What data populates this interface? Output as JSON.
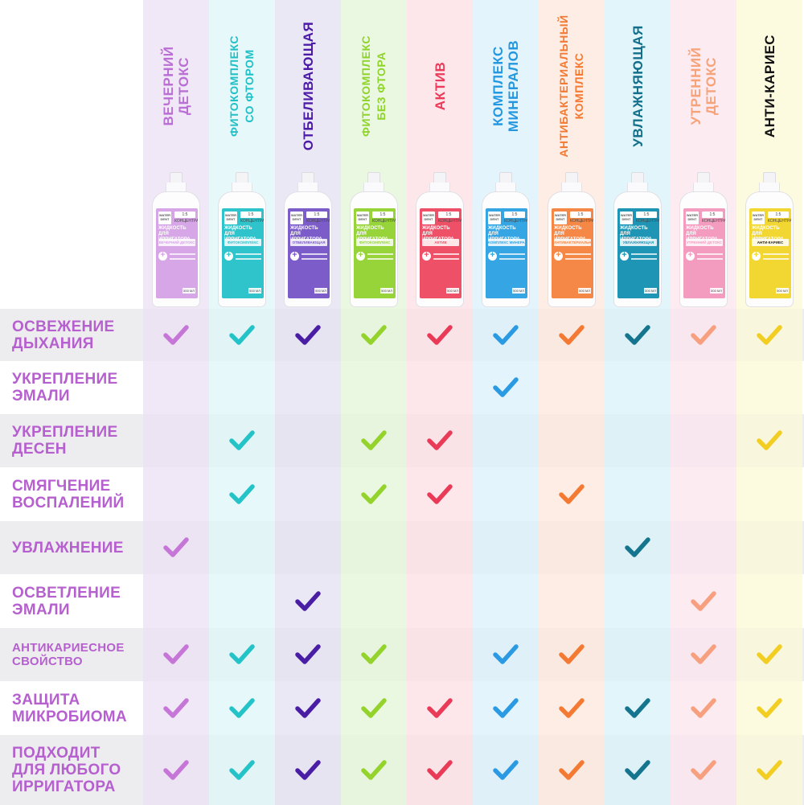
{
  "columns": [
    {
      "title": "ВЕЧЕРНИЙ\nДЕТОКС",
      "bottle_label": "ВЕЧЕРНИЙ ДЕТОКС",
      "color": "#b96fd4",
      "tint": "#ece1f3",
      "label_color": "#d7a6e6"
    },
    {
      "title": "ФИТОКОМПЛЕКС\nСО ФТОРОМ",
      "bottle_label": "ФИТОКОМПЛЕКС",
      "color": "#1fc0c6",
      "tint": "#dff6f7",
      "label_color": "#2fc4cc"
    },
    {
      "title": "ОТБЕЛИВАЮЩАЯ",
      "bottle_label": "ОТБЕЛИВАЮЩАЯ",
      "color": "#4b1aa6",
      "tint": "#e5e1f2",
      "label_color": "#7b5cc8"
    },
    {
      "title": "ФИТОКОМПЛЕКС\nБЕЗ ФТОРА",
      "bottle_label": "ФИТОКОМПЛЕКС",
      "color": "#8fd42a",
      "tint": "#e6f6d8",
      "label_color": "#96d43a"
    },
    {
      "title": "АКТИВ",
      "bottle_label": "АКТИВ",
      "color": "#ea3b5a",
      "tint": "#fde0e4",
      "label_color": "#ee5068"
    },
    {
      "title": "КОМПЛЕКС\nМИНЕРАЛОВ",
      "bottle_label": "КОМПЛЕКС МИНЕРАЛОВ",
      "color": "#2397df",
      "tint": "#dcf1fb",
      "label_color": "#35a5e3"
    },
    {
      "title": "АНТИБАКТЕРИАЛЬНЫЙ\nКОМПЛЕКС",
      "bottle_label": "АНТИБАКТЕРИАЛЬНЫЙ КОМПЛЕКС",
      "color": "#f47932",
      "tint": "#fde8dc",
      "label_color": "#f58846"
    },
    {
      "title": "УВЛАЖНЯЮЩАЯ",
      "bottle_label": "УВЛАЖНЯЮЩАЯ",
      "color": "#136f8a",
      "tint": "#d9f2f8",
      "label_color": "#1f95b5"
    },
    {
      "title": "УТРЕННИЙ\nДЕТОКС",
      "bottle_label": "УТРЕННИЙ ДЕТОКС",
      "color": "#f6a37a",
      "tint": "#fde6ee",
      "label_color": "#f49cbf"
    },
    {
      "title": "АНТИ-КАРИЕС",
      "bottle_label": "АНТИ-КАРИЕС",
      "color": "#111111",
      "tint": "#fbf8d6",
      "label_color": "#f2d632"
    }
  ],
  "bottle_common": {
    "brand": "WATER DENT",
    "concentrate": "1:5 КОНЦЕНТРАТ",
    "product": "ЖИДКОСТЬ ДЛЯ ИРРИГАТОРА",
    "volume": "500 МЛ"
  },
  "check_colors": [
    "#c576d6",
    "#23c3c7",
    "#4a1ea4",
    "#94d32c",
    "#e93b58",
    "#2a9be3",
    "#f47a33",
    "#15758f",
    "#f7a07f",
    "#f2cd22"
  ],
  "rows": [
    {
      "label": "ОСВЕЖЕНИЕ\nДЫХАНИЯ",
      "checks": [
        1,
        1,
        1,
        1,
        1,
        1,
        1,
        1,
        1,
        1
      ]
    },
    {
      "label": "УКРЕПЛЕНИЕ\nЭМАЛИ",
      "checks": [
        0,
        0,
        0,
        0,
        0,
        1,
        0,
        0,
        0,
        0
      ]
    },
    {
      "label": "УКРЕПЛЕНИЕ\nДЕСЕН",
      "checks": [
        0,
        1,
        0,
        1,
        1,
        0,
        0,
        0,
        0,
        1
      ]
    },
    {
      "label": "СМЯГЧЕНИЕ\nВОСПАЛЕНИЙ",
      "checks": [
        0,
        1,
        0,
        1,
        1,
        0,
        1,
        0,
        0,
        0
      ]
    },
    {
      "label": "УВЛАЖНЕНИЕ",
      "checks": [
        1,
        0,
        0,
        0,
        0,
        0,
        0,
        1,
        0,
        0
      ]
    },
    {
      "label": "ОСВЕТЛЕНИЕ\nЭМАЛИ",
      "checks": [
        0,
        0,
        1,
        0,
        0,
        0,
        0,
        0,
        1,
        0
      ]
    },
    {
      "label": "АНТИКАРИЕСНОЕ\nСВОЙСТВО",
      "checks": [
        1,
        1,
        1,
        1,
        0,
        1,
        1,
        0,
        1,
        1
      ]
    },
    {
      "label": "ЗАЩИТА\nМИКРОБИОМА",
      "checks": [
        1,
        1,
        1,
        1,
        1,
        1,
        1,
        1,
        1,
        1
      ]
    },
    {
      "label": "ПОДХОДИТ\nДЛЯ ЛЮБОГО\nИРРИГАТОРА",
      "checks": [
        1,
        1,
        1,
        1,
        1,
        1,
        1,
        1,
        1,
        1
      ]
    }
  ]
}
